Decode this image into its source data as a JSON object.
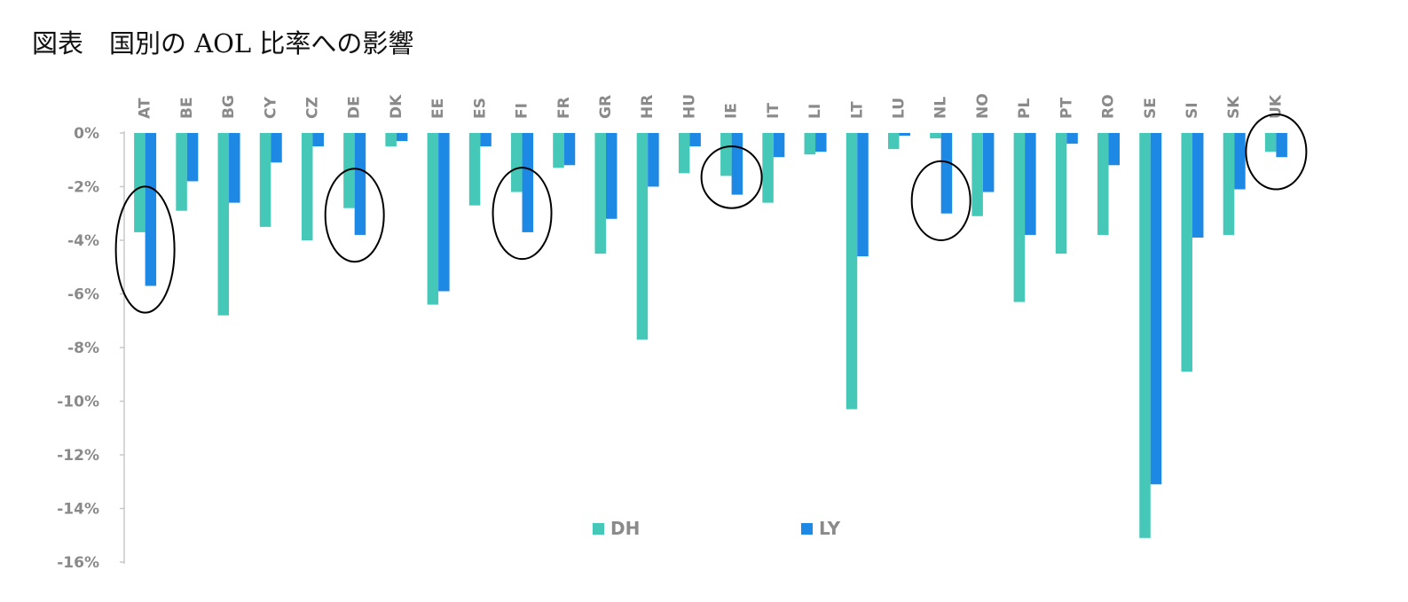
{
  "title": "図表　国別の AOL 比率への影響",
  "chart_data": {
    "type": "bar",
    "title": "図表　国別の AOL 比率への影響",
    "xlabel": "",
    "ylabel": "",
    "ylim": [
      -16,
      0
    ],
    "yticks": [
      0,
      -2,
      -4,
      -6,
      -8,
      -10,
      -12,
      -14,
      -16
    ],
    "ytick_labels": [
      "0%",
      "-2%",
      "-4%",
      "-6%",
      "-8%",
      "-10%",
      "-12%",
      "-14%",
      "-16%"
    ],
    "categories": [
      "AT",
      "BE",
      "BG",
      "CY",
      "CZ",
      "DE",
      "DK",
      "EE",
      "ES",
      "FI",
      "FR",
      "GR",
      "HR",
      "HU",
      "IE",
      "IT",
      "LI",
      "LT",
      "LU",
      "NL",
      "NO",
      "PL",
      "PT",
      "RO",
      "SE",
      "SI",
      "SK",
      "UK"
    ],
    "series": [
      {
        "name": "DH",
        "color": "#45c8b8",
        "values": [
          -3.7,
          -2.9,
          -6.8,
          -3.5,
          -4.0,
          -2.8,
          -0.5,
          -6.4,
          -2.7,
          -2.2,
          -1.3,
          -4.5,
          -7.7,
          -1.5,
          -1.6,
          -2.6,
          -0.8,
          -10.3,
          -0.6,
          -0.2,
          -3.1,
          -6.3,
          -4.5,
          -3.8,
          -15.1,
          -8.9,
          -3.8,
          -0.7
        ]
      },
      {
        "name": "LY",
        "color": "#1e88e5",
        "values": [
          -5.7,
          -1.8,
          -2.6,
          -1.1,
          -0.5,
          -3.8,
          -0.3,
          -5.9,
          -0.5,
          -3.7,
          -1.2,
          -3.2,
          -2.0,
          -0.5,
          -2.3,
          -0.9,
          -0.7,
          -4.6,
          -0.1,
          -3.0,
          -2.2,
          -3.8,
          -0.4,
          -1.2,
          -13.1,
          -3.9,
          -2.1,
          -0.9
        ]
      }
    ],
    "grid": false,
    "legend": "bottom-center",
    "highlighted_categories": [
      "AT",
      "DE",
      "FI",
      "IE",
      "NL",
      "UK"
    ]
  }
}
